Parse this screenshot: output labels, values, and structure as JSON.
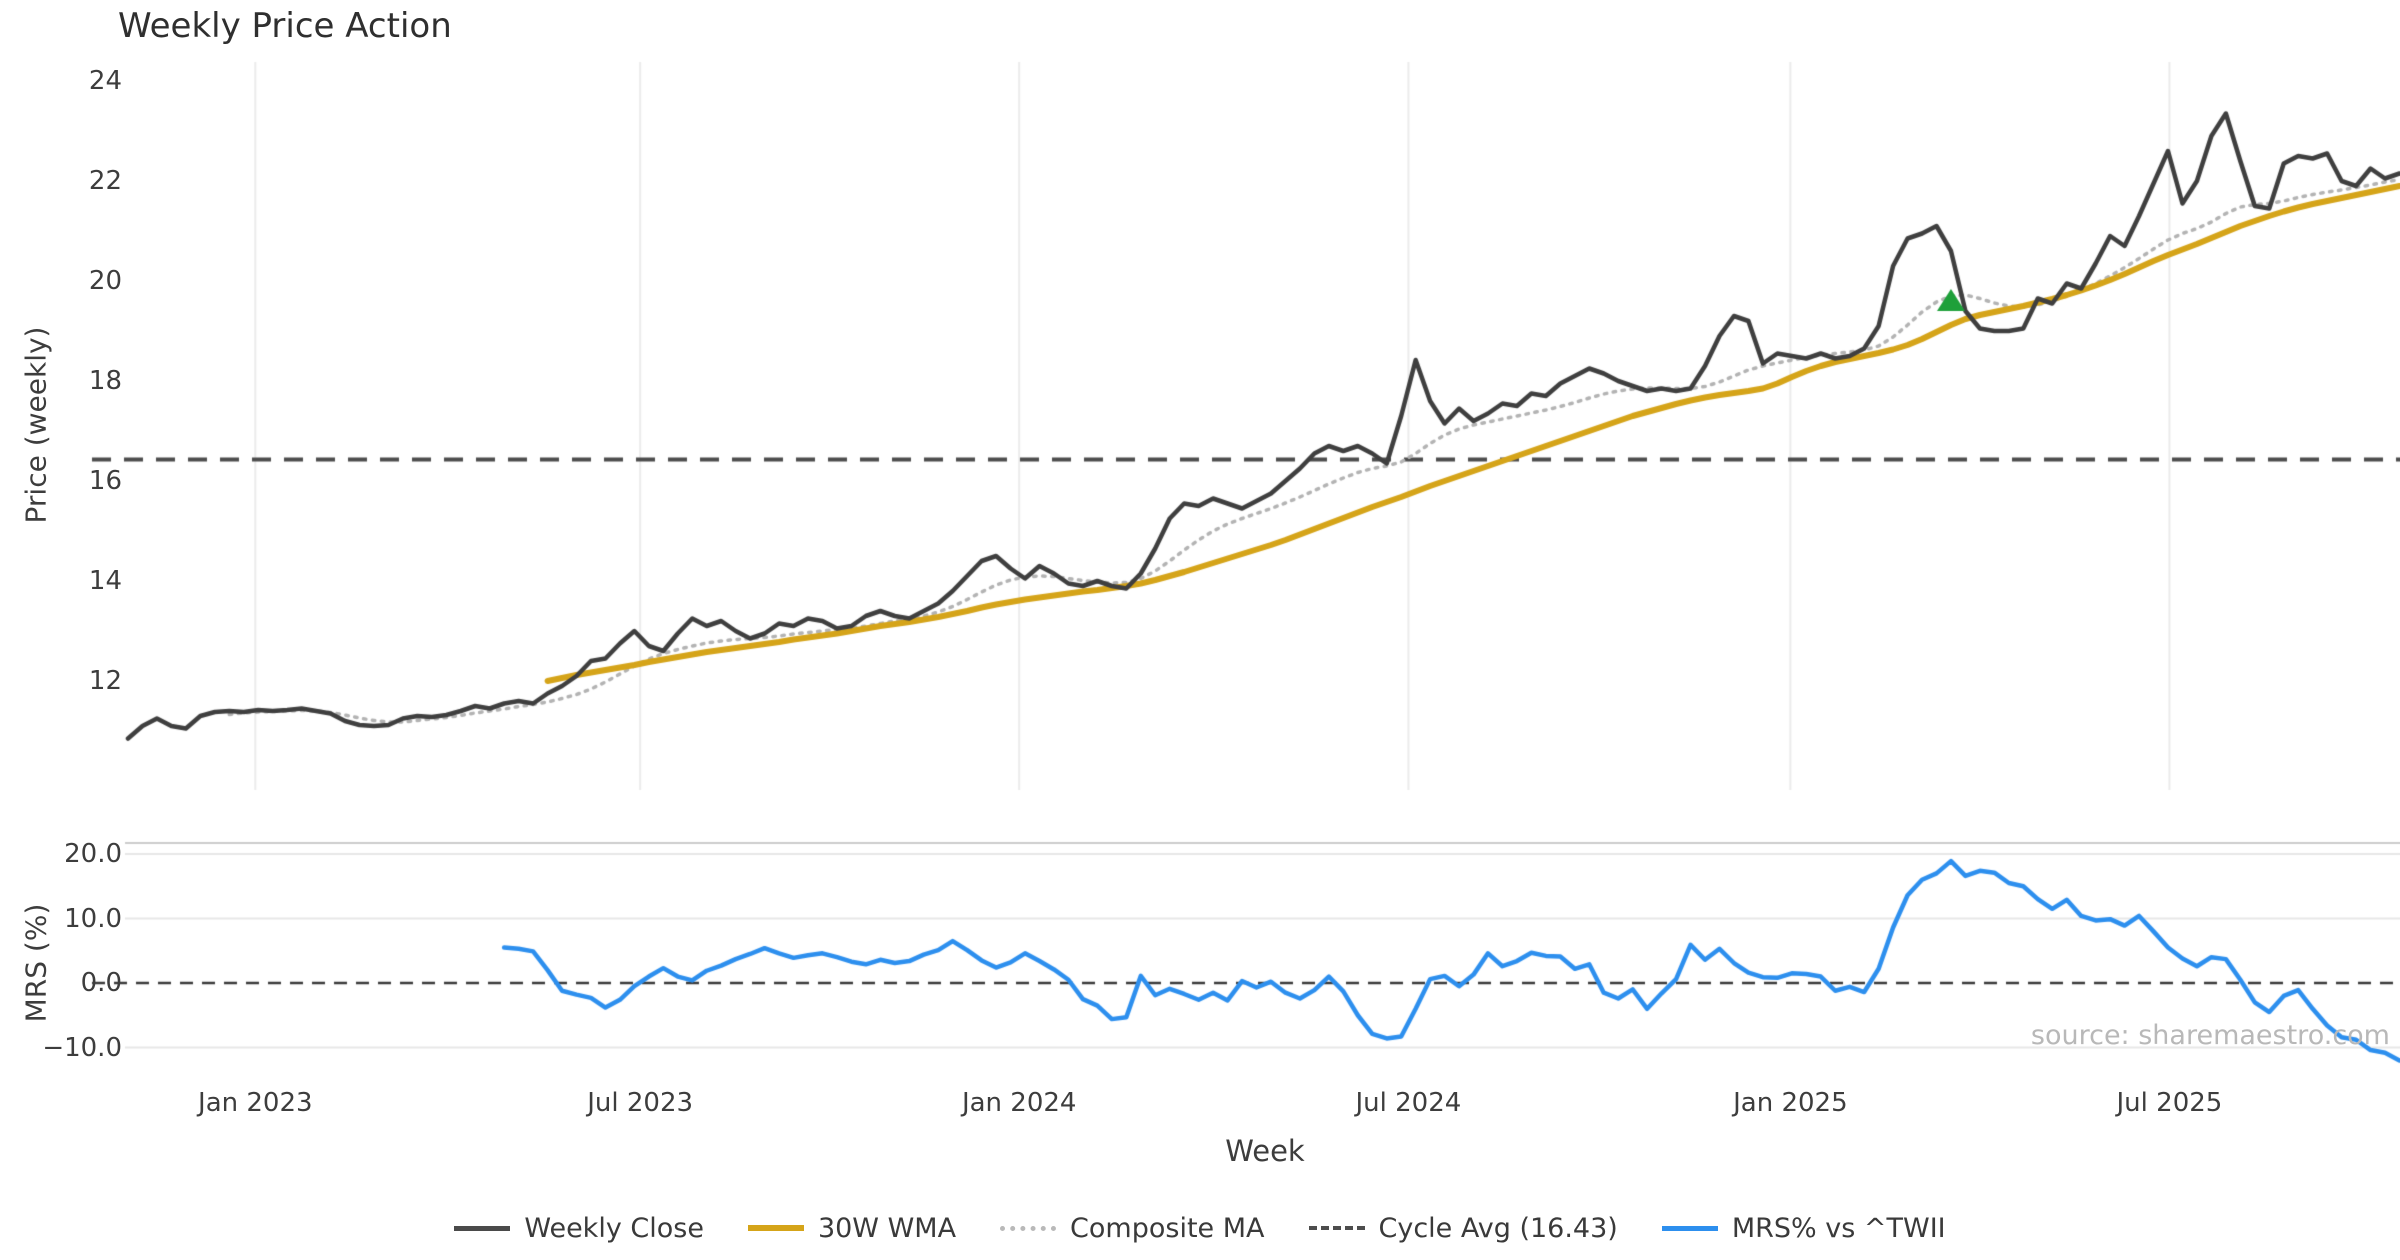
{
  "title": "Weekly Price Action",
  "xlabel": "Week",
  "source": "source: sharemaestro.com",
  "colors": {
    "close": "#3f3f3f",
    "wma": "#d5a419",
    "composite": "#b3b3b3",
    "cycle_avg": "#4d4d4d",
    "mrs": "#2d8fee",
    "zero_line": "#3a3a3a",
    "grid": "#ebebeb",
    "mrs_grid": "#e7e7e7",
    "mrs_spine": "#cccccc",
    "marker_green": "#1ea03a",
    "text": "#3d3d3d",
    "source_text": "#b8b8b8"
  },
  "price_panel": {
    "ylabel": "Price (weekly)",
    "ytick_labels": [
      "24",
      "22",
      "20",
      "18",
      "16",
      "14",
      "12"
    ],
    "ytick_values": [
      24,
      22,
      20,
      18,
      16,
      14,
      12
    ]
  },
  "mrs_panel": {
    "ylabel": "MRS (%)",
    "ytick_labels": [
      "20.0",
      "10.0",
      "0.0",
      "−10.0"
    ],
    "ytick_values": [
      20,
      10,
      0,
      -10
    ]
  },
  "x_axis": {
    "tick_labels": [
      "Jan 2023",
      "Jul 2023",
      "Jan 2024",
      "Jul 2024",
      "Jan 2025",
      "Jul 2025"
    ],
    "tick_week_index": [
      8.8,
      35.4,
      61.6,
      88.5,
      114.9,
      141.1
    ]
  },
  "legend": {
    "items": [
      {
        "label": "Weekly Close",
        "swatch": "sw-solid-close",
        "name": "weekly-close"
      },
      {
        "label": "30W WMA",
        "swatch": "sw-solid-wma",
        "name": "30w-wma"
      },
      {
        "label": "Composite MA",
        "swatch": "sw-dotted",
        "name": "composite-ma"
      },
      {
        "label": "Cycle Avg (16.43)",
        "swatch": "sw-dashed",
        "name": "cycle-avg"
      },
      {
        "label": "MRS% vs ^TWII",
        "swatch": "sw-solid-mrs",
        "name": "mrs-vs-twii"
      }
    ]
  },
  "chart_data": [
    {
      "type": "line",
      "panel": "price",
      "title": "Weekly Price Action",
      "ylabel": "Price (weekly)",
      "ylim": [
        10.4,
        24.4
      ],
      "grid": "vertical-only",
      "legend_position": "bottom-center",
      "cycle_avg_value": 16.43,
      "signal_marker": {
        "week_index": 126,
        "value": 19.6,
        "shape": "triangle-up",
        "color": "#1ea03a"
      },
      "series": [
        {
          "name": "Weekly Close",
          "start_week": 0,
          "values": [
            10.85,
            11.1,
            11.25,
            11.1,
            11.05,
            11.3,
            11.38,
            11.4,
            11.38,
            11.42,
            11.4,
            11.42,
            11.45,
            11.4,
            11.35,
            11.2,
            11.12,
            11.1,
            11.12,
            11.25,
            11.3,
            11.28,
            11.32,
            11.4,
            11.5,
            11.45,
            11.55,
            11.6,
            11.55,
            11.75,
            11.9,
            12.1,
            12.4,
            12.45,
            12.75,
            13.0,
            12.7,
            12.6,
            12.95,
            13.25,
            13.1,
            13.2,
            13.0,
            12.85,
            12.95,
            13.15,
            13.1,
            13.25,
            13.2,
            13.05,
            13.1,
            13.3,
            13.4,
            13.3,
            13.25,
            13.4,
            13.55,
            13.8,
            14.1,
            14.4,
            14.5,
            14.25,
            14.05,
            14.3,
            14.15,
            13.95,
            13.9,
            14.0,
            13.9,
            13.85,
            14.15,
            14.65,
            15.25,
            15.55,
            15.5,
            15.65,
            15.55,
            15.45,
            15.6,
            15.75,
            16.0,
            16.25,
            16.55,
            16.7,
            16.6,
            16.7,
            16.55,
            16.35,
            17.3,
            18.42,
            17.6,
            17.15,
            17.45,
            17.2,
            17.35,
            17.55,
            17.5,
            17.75,
            17.7,
            17.95,
            18.1,
            18.25,
            18.15,
            18.0,
            17.9,
            17.8,
            17.85,
            17.8,
            17.85,
            18.3,
            18.9,
            19.3,
            19.2,
            18.35,
            18.55,
            18.5,
            18.45,
            18.55,
            18.45,
            18.5,
            18.65,
            19.1,
            20.3,
            20.85,
            20.95,
            21.1,
            20.6,
            19.4,
            19.05,
            19.0,
            19.0,
            19.05,
            19.65,
            19.55,
            19.95,
            19.85,
            20.35,
            20.9,
            20.7,
            21.3,
            21.95,
            22.6,
            21.55,
            22.0,
            22.9,
            23.35,
            22.4,
            21.5,
            21.45,
            22.35,
            22.5,
            22.45,
            22.55,
            22.0,
            21.9,
            22.25,
            22.05,
            22.15
          ]
        },
        {
          "name": "30W WMA",
          "start_week": 29,
          "values": [
            12.0,
            12.06,
            12.12,
            12.17,
            12.22,
            12.27,
            12.32,
            12.38,
            12.43,
            12.48,
            12.53,
            12.58,
            12.62,
            12.66,
            12.7,
            12.74,
            12.78,
            12.83,
            12.87,
            12.91,
            12.95,
            13.0,
            13.05,
            13.1,
            13.14,
            13.18,
            13.23,
            13.28,
            13.34,
            13.4,
            13.47,
            13.53,
            13.58,
            13.63,
            13.67,
            13.71,
            13.75,
            13.79,
            13.82,
            13.86,
            13.9,
            13.95,
            14.02,
            14.1,
            14.18,
            14.27,
            14.36,
            14.45,
            14.54,
            14.63,
            14.72,
            14.82,
            14.93,
            15.04,
            15.15,
            15.26,
            15.37,
            15.48,
            15.58,
            15.68,
            15.79,
            15.9,
            16.0,
            16.1,
            16.2,
            16.3,
            16.4,
            16.5,
            16.6,
            16.7,
            16.8,
            16.9,
            17.0,
            17.1,
            17.2,
            17.3,
            17.38,
            17.46,
            17.54,
            17.61,
            17.67,
            17.72,
            17.76,
            17.8,
            17.85,
            17.95,
            18.08,
            18.2,
            18.3,
            18.38,
            18.44,
            18.5,
            18.56,
            18.63,
            18.72,
            18.84,
            18.98,
            19.12,
            19.24,
            19.32,
            19.38,
            19.44,
            19.5,
            19.57,
            19.64,
            19.72,
            19.81,
            19.91,
            20.02,
            20.14,
            20.27,
            20.4,
            20.52,
            20.63,
            20.74,
            20.86,
            20.98,
            21.1,
            21.2,
            21.3,
            21.39,
            21.47,
            21.54,
            21.6,
            21.66,
            21.72,
            21.78,
            21.84,
            21.9
          ]
        },
        {
          "name": "Composite MA",
          "start_week": 7,
          "values": [
            11.33,
            11.36,
            11.38,
            11.39,
            11.4,
            11.41,
            11.4,
            11.37,
            11.32,
            11.26,
            11.21,
            11.18,
            11.18,
            11.21,
            11.24,
            11.27,
            11.31,
            11.36,
            11.4,
            11.44,
            11.49,
            11.53,
            11.58,
            11.65,
            11.73,
            11.84,
            11.98,
            12.14,
            12.3,
            12.44,
            12.55,
            12.63,
            12.7,
            12.76,
            12.8,
            12.83,
            12.85,
            12.87,
            12.9,
            12.94,
            12.97,
            13.0,
            13.03,
            13.06,
            13.1,
            13.15,
            13.2,
            13.24,
            13.3,
            13.38,
            13.49,
            13.63,
            13.78,
            13.92,
            14.02,
            14.08,
            14.1,
            14.09,
            14.05,
            14.01,
            13.98,
            13.96,
            13.97,
            14.05,
            14.2,
            14.4,
            14.62,
            14.82,
            15.0,
            15.14,
            15.25,
            15.35,
            15.45,
            15.56,
            15.68,
            15.81,
            15.94,
            16.06,
            16.17,
            16.25,
            16.3,
            16.38,
            16.55,
            16.75,
            16.92,
            17.04,
            17.12,
            17.18,
            17.24,
            17.3,
            17.36,
            17.42,
            17.49,
            17.57,
            17.66,
            17.74,
            17.8,
            17.84,
            17.86,
            17.86,
            17.85,
            17.85,
            17.89,
            17.98,
            18.1,
            18.22,
            18.3,
            18.36,
            18.42,
            18.47,
            18.52,
            18.55,
            18.58,
            18.62,
            18.7,
            18.88,
            19.12,
            19.38,
            19.58,
            19.7,
            19.72,
            19.65,
            19.56,
            19.5,
            19.48,
            19.52,
            19.6,
            19.7,
            19.82,
            19.95,
            20.1,
            20.27,
            20.45,
            20.64,
            20.82,
            20.95,
            21.05,
            21.18,
            21.35,
            21.48,
            21.53,
            21.55,
            21.6,
            21.67,
            21.73,
            21.78,
            21.82,
            21.87,
            21.92,
            21.98,
            22.03
          ]
        }
      ]
    },
    {
      "type": "line",
      "panel": "mrs",
      "ylabel": "MRS (%)",
      "ylim": [
        -13,
        21.5
      ],
      "grid": "horizontal-only",
      "zero_line": 0,
      "series": [
        {
          "name": "MRS% vs ^TWII",
          "start_week": 26,
          "values": [
            5.5,
            5.3,
            4.9,
            2.0,
            -1.2,
            -1.8,
            -2.3,
            -3.8,
            -2.6,
            -0.5,
            1.0,
            2.3,
            1.0,
            0.4,
            1.9,
            2.7,
            3.7,
            4.5,
            5.4,
            4.6,
            3.9,
            4.3,
            4.6,
            4.0,
            3.3,
            2.9,
            3.6,
            3.1,
            3.4,
            4.4,
            5.1,
            6.5,
            5.1,
            3.5,
            2.4,
            3.2,
            4.6,
            3.4,
            2.1,
            0.5,
            -2.5,
            -3.5,
            -5.6,
            -5.3,
            1.1,
            -1.9,
            -0.9,
            -1.7,
            -2.6,
            -1.5,
            -2.7,
            0.3,
            -0.7,
            0.2,
            -1.5,
            -2.4,
            -1.1,
            1.0,
            -1.3,
            -5.0,
            -7.9,
            -8.6,
            -8.3,
            -4.0,
            0.6,
            1.1,
            -0.5,
            1.3,
            4.6,
            2.6,
            3.4,
            4.7,
            4.2,
            4.1,
            2.2,
            2.9,
            -1.5,
            -2.4,
            -1.0,
            -4.0,
            -1.6,
            0.6,
            5.9,
            3.6,
            5.3,
            3.1,
            1.6,
            0.9,
            0.8,
            1.5,
            1.4,
            1.0,
            -1.2,
            -0.6,
            -1.4,
            2.2,
            8.6,
            13.6,
            16.0,
            17.0,
            18.9,
            16.6,
            17.4,
            17.1,
            15.5,
            15.0,
            13.0,
            11.5,
            12.9,
            10.4,
            9.7,
            9.9,
            8.9,
            10.4,
            8.0,
            5.5,
            3.8,
            2.6,
            4.0,
            3.7,
            0.5,
            -3.0,
            -4.5,
            -2.0,
            -1.1,
            -4.0,
            -6.6,
            -8.4,
            -8.8,
            -10.4,
            -10.8,
            -12.0
          ]
        }
      ]
    }
  ]
}
